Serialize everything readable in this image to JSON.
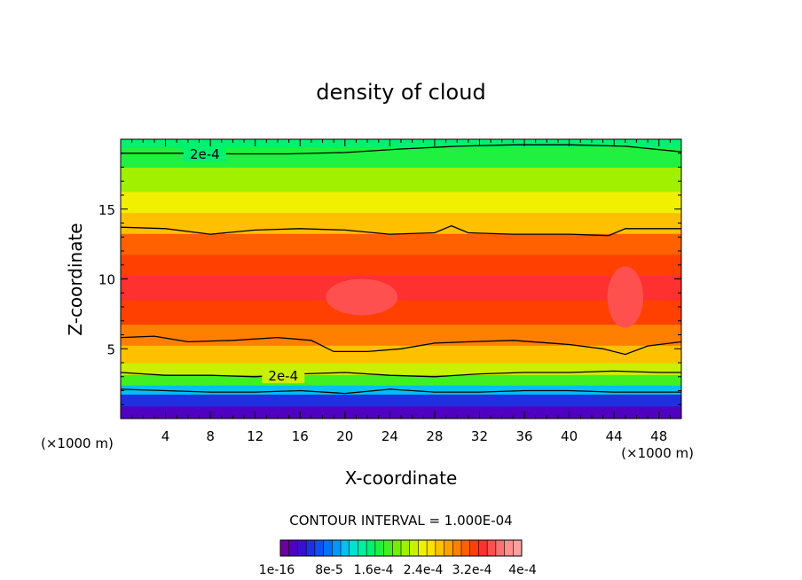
{
  "chart_data": {
    "type": "heatmap",
    "title": "density of cloud",
    "xlabel": "X-coordinate",
    "ylabel": "Z-coordinate",
    "x_unit_left": "(×1000 m)",
    "x_unit_right": "(×1000 m)",
    "xlim": [
      0,
      50
    ],
    "ylim": [
      0,
      20
    ],
    "x_ticks": [
      4,
      8,
      12,
      16,
      20,
      24,
      28,
      32,
      36,
      40,
      44,
      48
    ],
    "y_ticks": [
      5,
      10,
      15
    ],
    "contour_interval_text": "CONTOUR INTERVAL = 1.000E-04",
    "contour_labels": [
      "2e-4",
      "2e-4"
    ],
    "contour_label_positions": [
      [
        7.5,
        19.0
      ],
      [
        14.5,
        3.1
      ]
    ],
    "colorbar_labels": [
      "1e-16",
      "8e-5",
      "1.6e-4",
      "2.4e-4",
      "3.2e-4",
      "4e-4"
    ],
    "colorbar_colors": [
      "#6a00a0",
      "#5000c0",
      "#3a10d0",
      "#2030e0",
      "#1050f0",
      "#0070ff",
      "#0098ff",
      "#00c0f0",
      "#00e0d0",
      "#00f0a0",
      "#00f070",
      "#20f040",
      "#40f020",
      "#70f000",
      "#a0f000",
      "#c8f000",
      "#f0f000",
      "#ffe000",
      "#ffc000",
      "#ffa000",
      "#ff8000",
      "#ff6000",
      "#ff4000",
      "#ff3030",
      "#ff5050",
      "#ff7070",
      "#ff9090",
      "#ffa0a0"
    ],
    "vertical_profile": [
      {
        "z": 0.3,
        "level": 1
      },
      {
        "z": 1.5,
        "level": 3
      },
      {
        "z": 2.0,
        "level": 7
      },
      {
        "z": 2.8,
        "level": 12
      },
      {
        "z": 3.5,
        "level": 15
      },
      {
        "z": 4.5,
        "level": 18
      },
      {
        "z": 6.0,
        "level": 20
      },
      {
        "z": 7.5,
        "level": 22
      },
      {
        "z": 9.5,
        "level": 23
      },
      {
        "z": 11.0,
        "level": 22
      },
      {
        "z": 12.5,
        "level": 21
      },
      {
        "z": 14.0,
        "level": 18
      },
      {
        "z": 15.5,
        "level": 16
      },
      {
        "z": 17.0,
        "level": 14
      },
      {
        "z": 19.0,
        "level": 11
      },
      {
        "z": 19.8,
        "level": 10
      }
    ],
    "contours": [
      {
        "points": [
          [
            0,
            19.0
          ],
          [
            5,
            19.0
          ],
          [
            10,
            18.95
          ],
          [
            15,
            18.95
          ],
          [
            20,
            19.05
          ],
          [
            25,
            19.3
          ],
          [
            30,
            19.5
          ],
          [
            35,
            19.6
          ],
          [
            40,
            19.6
          ],
          [
            45,
            19.5
          ],
          [
            50,
            19.1
          ]
        ]
      },
      {
        "points": [
          [
            0,
            13.7
          ],
          [
            4,
            13.6
          ],
          [
            8,
            13.2
          ],
          [
            12,
            13.5
          ],
          [
            16,
            13.6
          ],
          [
            20,
            13.5
          ],
          [
            24,
            13.2
          ],
          [
            28,
            13.3
          ],
          [
            29.5,
            13.8
          ],
          [
            31,
            13.3
          ],
          [
            35,
            13.2
          ],
          [
            40,
            13.2
          ],
          [
            43.5,
            13.1
          ],
          [
            45,
            13.6
          ],
          [
            48,
            13.6
          ],
          [
            50,
            13.6
          ]
        ]
      },
      {
        "points": [
          [
            0,
            5.8
          ],
          [
            3,
            5.9
          ],
          [
            6,
            5.5
          ],
          [
            10,
            5.6
          ],
          [
            14,
            5.8
          ],
          [
            17,
            5.6
          ],
          [
            19,
            4.8
          ],
          [
            22,
            4.8
          ],
          [
            25,
            5.0
          ],
          [
            28,
            5.4
          ],
          [
            31,
            5.5
          ],
          [
            35,
            5.6
          ],
          [
            40,
            5.3
          ],
          [
            43,
            5.0
          ],
          [
            45,
            4.6
          ],
          [
            47,
            5.2
          ],
          [
            50,
            5.5
          ]
        ]
      },
      {
        "points": [
          [
            0,
            3.3
          ],
          [
            4,
            3.1
          ],
          [
            8,
            3.1
          ],
          [
            12,
            3.0
          ],
          [
            16,
            3.2
          ],
          [
            20,
            3.3
          ],
          [
            24,
            3.1
          ],
          [
            28,
            3.0
          ],
          [
            32,
            3.2
          ],
          [
            36,
            3.3
          ],
          [
            40,
            3.3
          ],
          [
            44,
            3.4
          ],
          [
            48,
            3.3
          ],
          [
            50,
            3.3
          ]
        ]
      },
      {
        "points": [
          [
            0,
            2.1
          ],
          [
            4,
            2.0
          ],
          [
            8,
            1.9
          ],
          [
            12,
            1.9
          ],
          [
            16,
            2.0
          ],
          [
            20,
            1.8
          ],
          [
            24,
            2.1
          ],
          [
            28,
            1.9
          ],
          [
            32,
            1.9
          ],
          [
            36,
            2.0
          ],
          [
            40,
            2.0
          ],
          [
            44,
            1.9
          ],
          [
            48,
            1.9
          ],
          [
            50,
            1.9
          ]
        ]
      }
    ],
    "core_patches": [
      {
        "x": 21.5,
        "z": 8.7,
        "rx": 3.2,
        "rz": 1.3,
        "level": 24
      },
      {
        "x": 45.0,
        "z": 8.7,
        "rx": 1.6,
        "rz": 2.2,
        "level": 24
      }
    ],
    "grid": false,
    "legend": "bottom-center"
  }
}
